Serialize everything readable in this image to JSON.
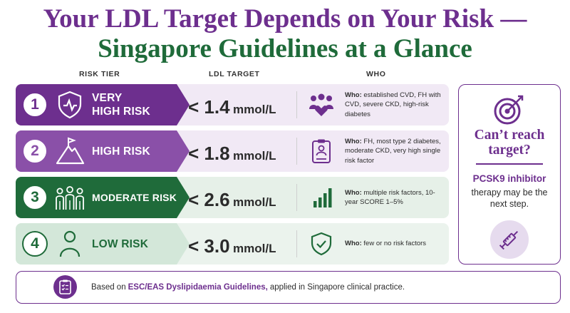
{
  "title": {
    "line1": "Your LDL Target Depends on Your Risk —",
    "line2": "Singapore Guidelines at a Glance"
  },
  "columns": {
    "risk_tier": "RISK TIER",
    "ldl_target": "LDL TARGET",
    "who": "WHO"
  },
  "rows": [
    {
      "number": "1",
      "tier_line1": "VERY",
      "tier_line2": "HIGH RISK",
      "ldl_value": "< 1.4",
      "ldl_unit": "mmol/L",
      "who_label": "Who:",
      "who_text": "established CVD, FH with CVD, severe CKD, high-risk diabetes",
      "tier_icon": "shield-heartbeat-icon",
      "who_icon": "people-heart-icon"
    },
    {
      "number": "2",
      "tier_line1": "HIGH RISK",
      "tier_line2": "",
      "ldl_value": "< 1.8",
      "ldl_unit": "mmol/L",
      "who_label": "Who:",
      "who_text": "FH, most type 2 diabetes, moderate CKD, very high single risk factor",
      "tier_icon": "mountain-flag-icon",
      "who_icon": "clipboard-person-icon"
    },
    {
      "number": "3",
      "tier_line1": "MODERATE RISK",
      "tier_line2": "",
      "ldl_value": "< 2.6",
      "ldl_unit": "mmol/L",
      "who_label": "Who:",
      "who_text": "multiple risk factors, 10-year SCORE 1–5%",
      "tier_icon": "group-people-icon",
      "who_icon": "bar-chart-icon"
    },
    {
      "number": "4",
      "tier_line1": "LOW RISK",
      "tier_line2": "",
      "ldl_value": "< 3.0",
      "ldl_unit": "mmol/L",
      "who_label": "Who:",
      "who_text": "few or no risk factors",
      "tier_icon": "person-icon",
      "who_icon": "shield-check-icon"
    }
  ],
  "sidebar": {
    "heading_line1": "Can’t reach",
    "heading_line2": "target?",
    "highlight": "PCSK9 inhibitor",
    "rest": "therapy may be the next step.",
    "top_icon": "target-arrow-icon",
    "bottom_icon": "syringe-icon"
  },
  "footer": {
    "prefix": "Based on",
    "highlight": "ESC/EAS Dyslipidaemia Guidelines,",
    "suffix": "applied in Singapore clinical practice.",
    "icon": "clipboard-checklist-icon"
  },
  "colors": {
    "purple_dark": "#6d2f8e",
    "purple_mid": "#8a50a8",
    "green_dark": "#1f6b3a",
    "green_light": "#d3e7d9",
    "panel_purple": "#f1e9f5",
    "panel_green": "#e6f0e8"
  }
}
